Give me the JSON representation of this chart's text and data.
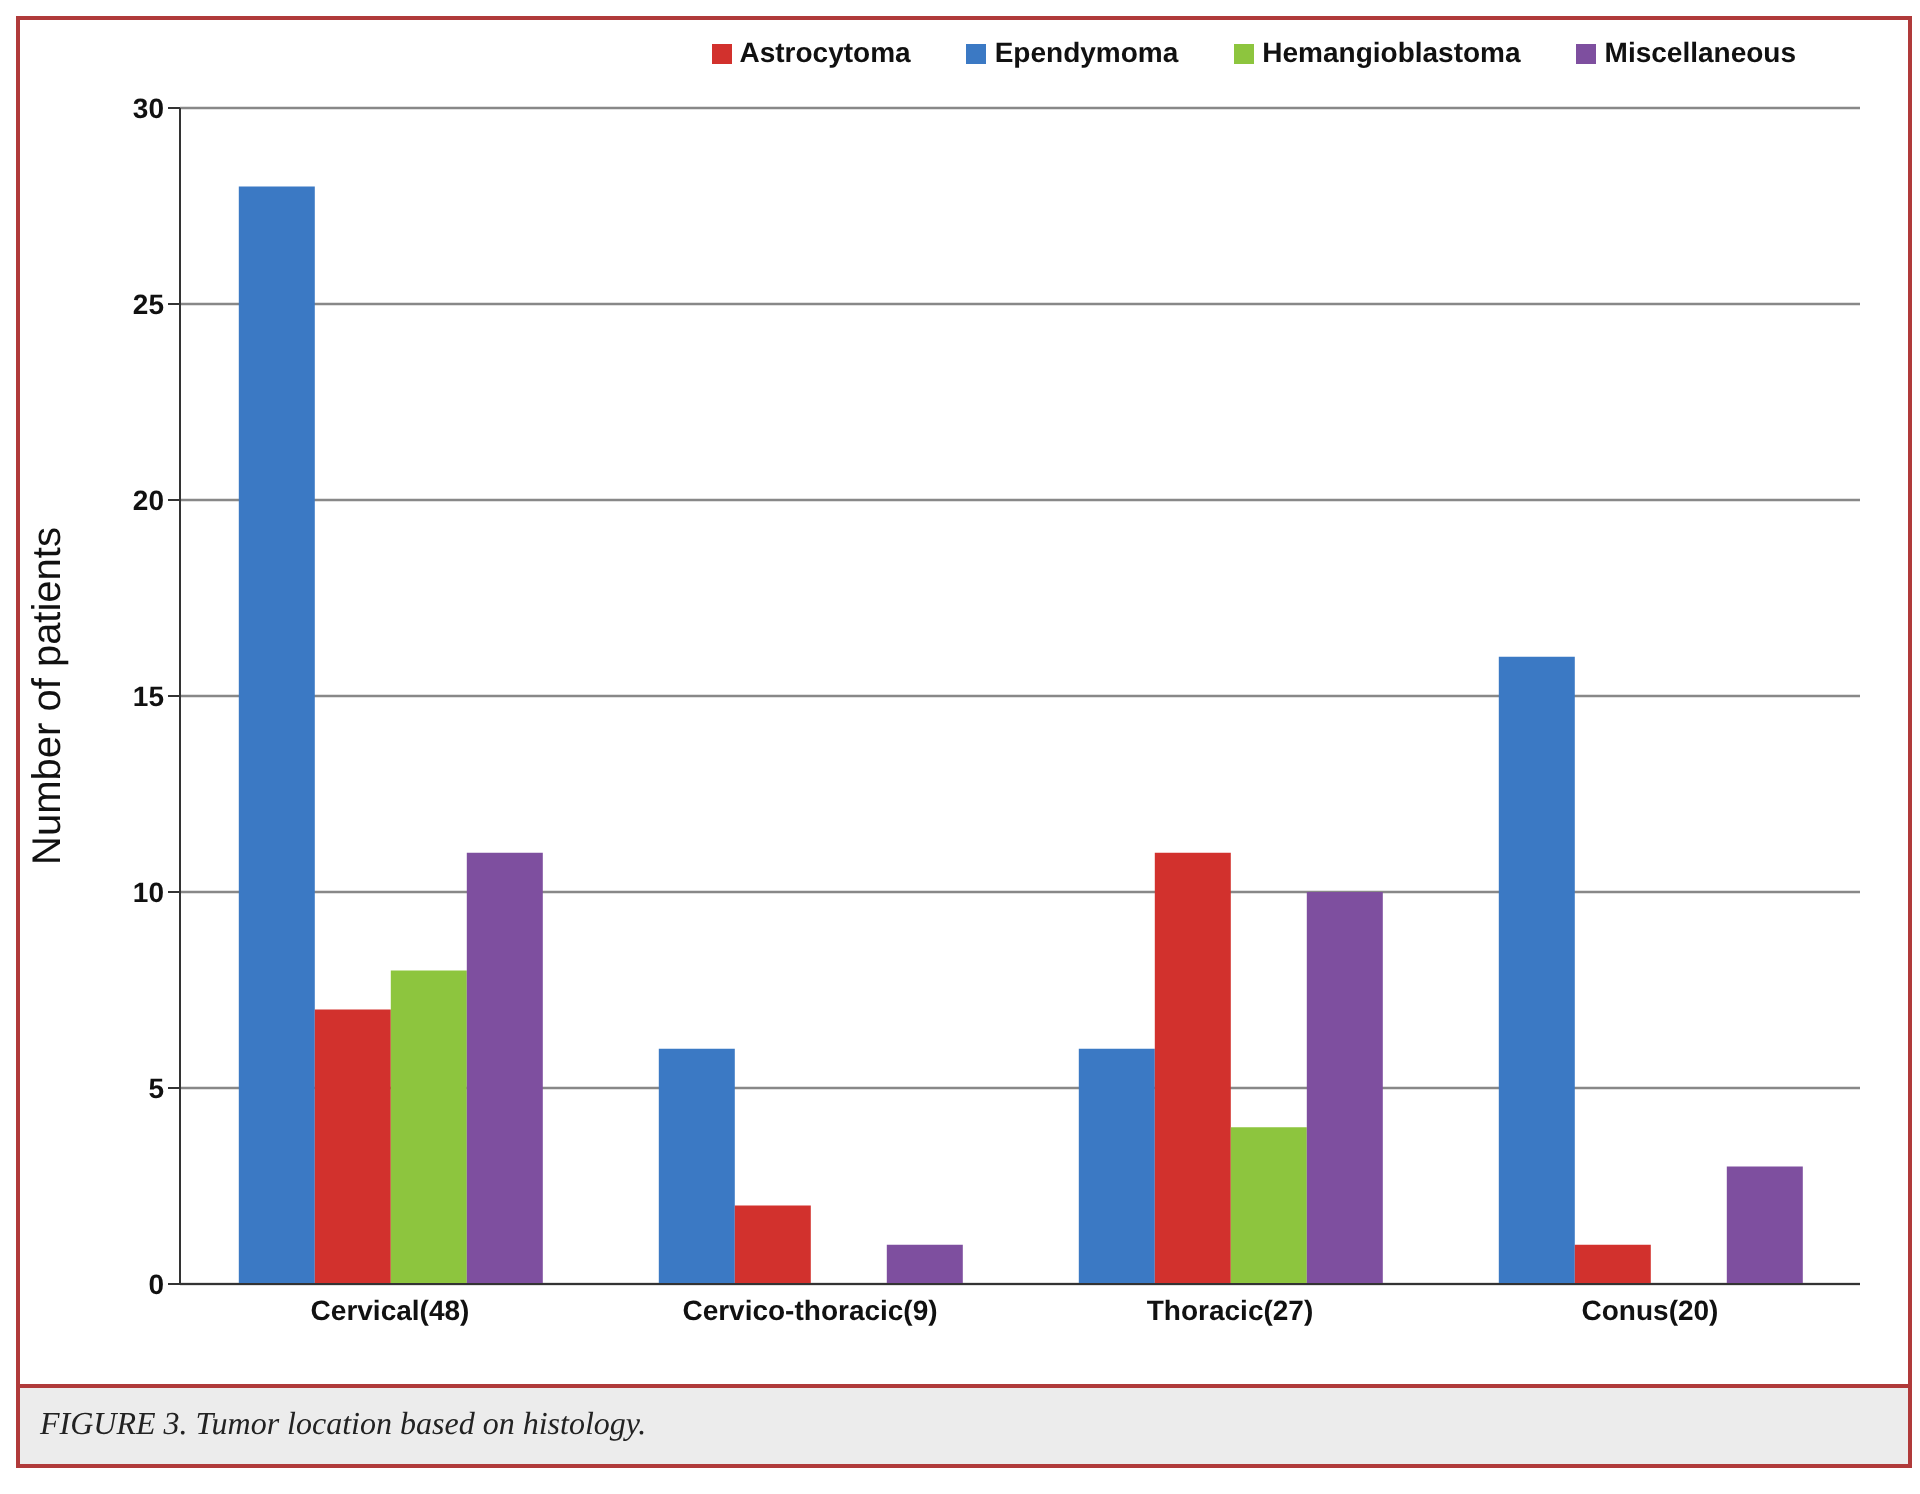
{
  "chart_data": {
    "type": "bar",
    "ylabel": "Number of patients",
    "categories": [
      "Cervical(48)",
      "Cervico-thoracic(9)",
      "Thoracic(27)",
      "Conus(20)"
    ],
    "series": [
      {
        "name": "Ependymoma",
        "color": "#3b79c4",
        "values": [
          28,
          6,
          6,
          16
        ]
      },
      {
        "name": "Astrocytoma",
        "color": "#d2312d",
        "values": [
          7,
          2,
          11,
          1
        ]
      },
      {
        "name": "Hemangioblastoma",
        "color": "#8dc53e",
        "values": [
          8,
          0,
          4,
          0
        ]
      },
      {
        "name": "Miscellaneous",
        "color": "#7e4f9f",
        "values": [
          11,
          1,
          10,
          3
        ]
      }
    ],
    "ylim": [
      0,
      30
    ],
    "yticks": [
      0,
      5,
      10,
      15,
      20,
      25,
      30
    ],
    "grid": "y",
    "legend": "top right",
    "annotations": [
      "FIGURE 3. Tumor location based on histology."
    ]
  }
}
